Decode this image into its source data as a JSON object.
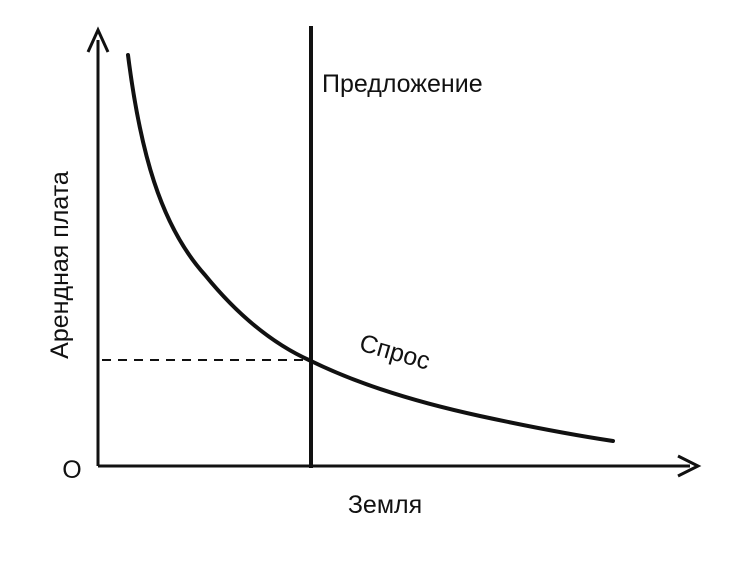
{
  "diagram": {
    "y_axis_label": "Арендная плата",
    "x_axis_label": "Земля",
    "origin_label": "O",
    "supply_label": "Предложение",
    "demand_label": "Спрос",
    "line_color": "#111111",
    "background": "#ffffff"
  }
}
